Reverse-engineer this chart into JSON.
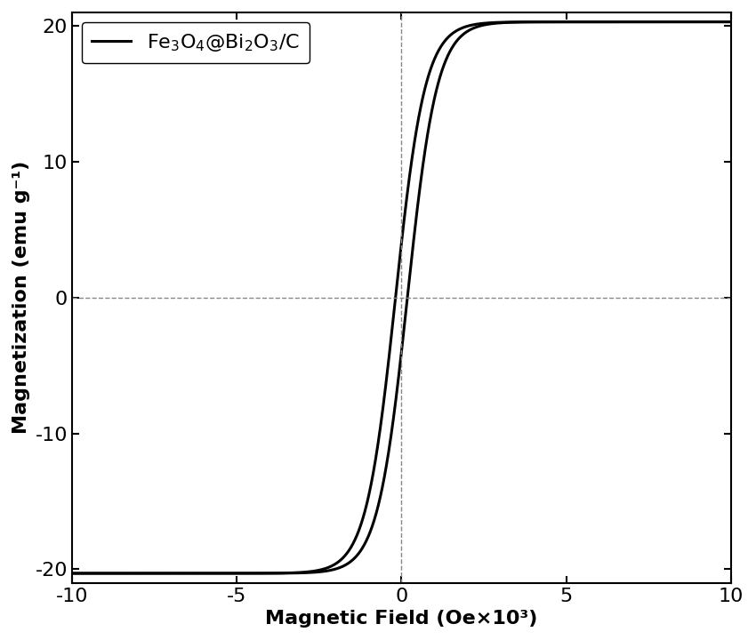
{
  "xlabel": "Magnetic Field (Oe×10³)",
  "ylabel": "Magnetization (emu g⁻¹)",
  "xlim": [
    -10,
    10
  ],
  "ylim": [
    -21,
    21
  ],
  "xticks": [
    -10,
    -5,
    0,
    5,
    10
  ],
  "yticks": [
    -20,
    -10,
    0,
    10,
    20
  ],
  "legend_label": "Fe$_3$O$_4$@Bi$_2$O$_3$/C",
  "line_color": "#000000",
  "background_color": "#ffffff",
  "saturation_magnetization": 20.3,
  "coercivity": 0.18,
  "tanh_scale": 0.9,
  "line_width": 2.2,
  "dashed_color": "#888888",
  "font_size": 16,
  "tick_font_size": 16,
  "figwidth": 8.5,
  "figheight": 7.2
}
